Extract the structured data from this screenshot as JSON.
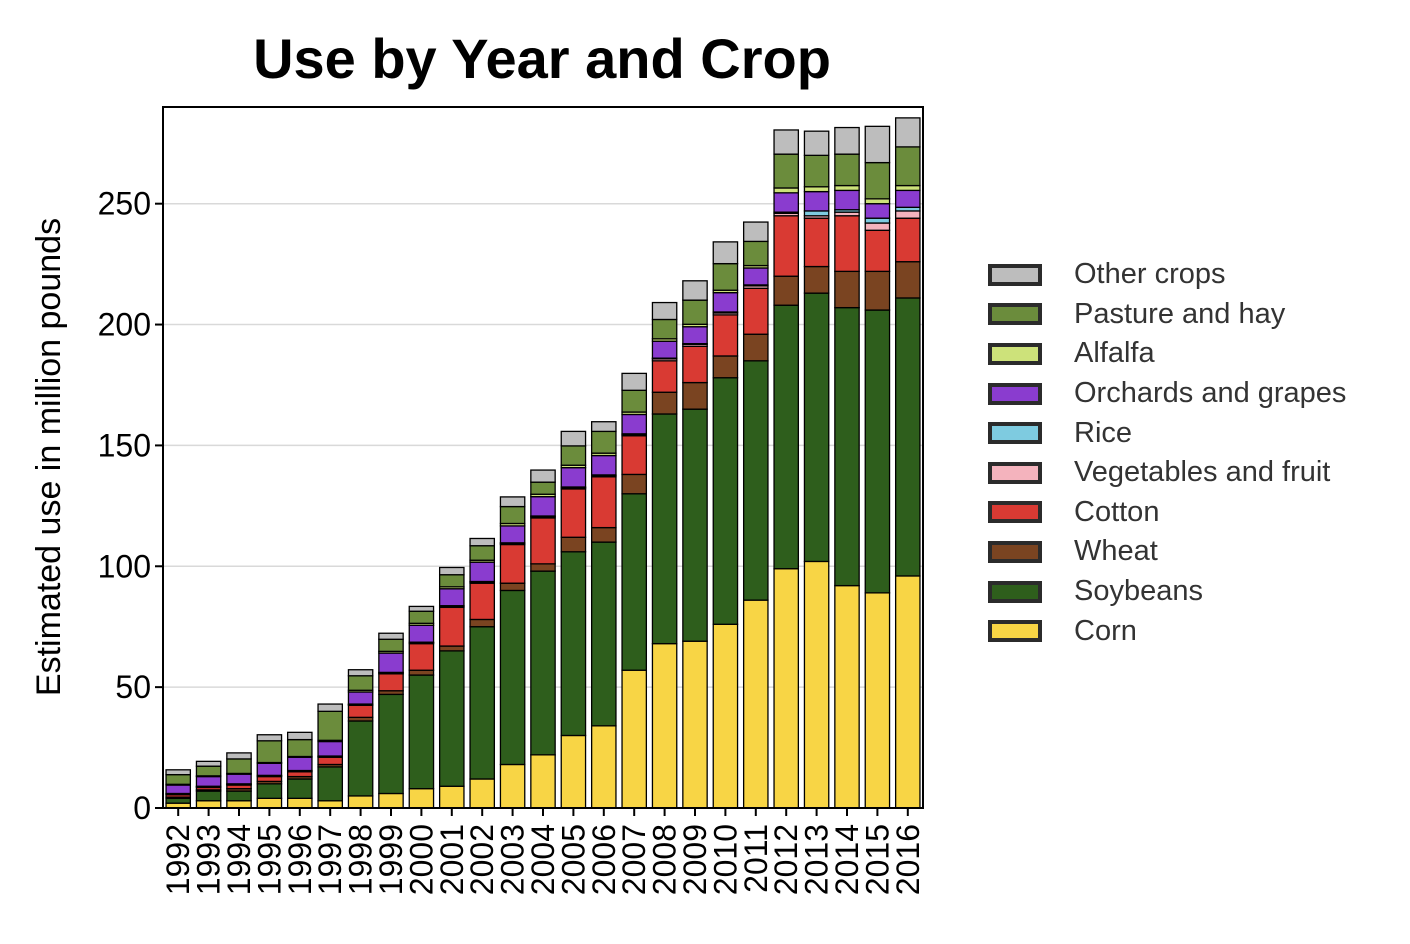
{
  "chart_data": {
    "type": "bar",
    "stacked": true,
    "title": "Use by Year and Crop",
    "xlabel": "",
    "ylabel": "Estimated use in million pounds",
    "ylim": [
      0,
      290
    ],
    "yticks": [
      0,
      50,
      100,
      150,
      200,
      250
    ],
    "grid": "horizontal",
    "legend_position": "right",
    "categories": [
      "1992",
      "1993",
      "1994",
      "1995",
      "1996",
      "1997",
      "1998",
      "1999",
      "2000",
      "2001",
      "2002",
      "2003",
      "2004",
      "2005",
      "2006",
      "2007",
      "2008",
      "2009",
      "2010",
      "2011",
      "2012",
      "2013",
      "2014",
      "2015",
      "2016"
    ],
    "series": [
      {
        "name": "Corn",
        "color": "#f8d545",
        "values": [
          2,
          3,
          3,
          4,
          4,
          3,
          5,
          6,
          8,
          9,
          12,
          18,
          22,
          30,
          34,
          57,
          68,
          69,
          76,
          86,
          99,
          102,
          92,
          89,
          96
        ]
      },
      {
        "name": "Soybeans",
        "color": "#2e5e1c",
        "values": [
          2,
          4,
          4,
          6,
          8,
          14,
          31,
          41,
          47,
          56,
          63,
          72,
          76,
          76,
          76,
          73,
          95,
          96,
          102,
          99,
          109,
          111,
          115,
          117,
          115
        ]
      },
      {
        "name": "Wheat",
        "color": "#7a4421",
        "values": [
          0.5,
          0.5,
          1,
          1,
          1,
          1,
          1.5,
          1.5,
          2,
          2,
          3,
          3,
          3,
          6,
          6,
          8,
          9,
          11,
          9,
          11,
          12,
          11,
          15,
          16,
          15
        ]
      },
      {
        "name": "Cotton",
        "color": "#d93a33",
        "values": [
          1,
          1,
          1.5,
          2,
          2,
          3,
          5,
          7,
          11,
          16,
          15,
          16,
          19,
          20,
          21,
          16,
          13,
          15,
          17,
          19,
          25,
          20,
          23,
          17,
          18
        ]
      },
      {
        "name": "Vegetables and fruit",
        "color": "#f4b3bd",
        "values": [
          0.3,
          0.3,
          0.3,
          0.3,
          0.3,
          0.3,
          0.3,
          0.4,
          0.4,
          0.5,
          0.5,
          0.5,
          0.5,
          0.5,
          0.5,
          0.5,
          0.8,
          0.8,
          0.8,
          1,
          1,
          1,
          1.5,
          3,
          3
        ]
      },
      {
        "name": "Rice",
        "color": "#7ecbe0",
        "values": [
          0.2,
          0.2,
          0.2,
          0.2,
          0.2,
          0.2,
          0.2,
          0.2,
          0.2,
          0.2,
          0.2,
          0.2,
          0.3,
          0.3,
          0.3,
          0.3,
          0.3,
          0.3,
          0.4,
          0.4,
          0.5,
          2,
          1,
          2,
          1.5
        ]
      },
      {
        "name": "Orchards and grapes",
        "color": "#8a3ccf",
        "values": [
          3.5,
          4,
          4,
          5,
          5.5,
          6,
          5,
          8,
          7,
          7,
          8,
          7,
          8,
          8,
          8,
          8,
          7,
          7,
          8,
          7,
          8,
          8,
          8,
          6,
          7
        ]
      },
      {
        "name": "Alfalfa",
        "color": "#cde27a",
        "values": [
          0.3,
          0.3,
          0.3,
          0.3,
          0.3,
          0.5,
          0.7,
          0.7,
          0.8,
          0.8,
          0.8,
          1,
          1,
          1,
          1,
          1,
          1,
          1,
          1,
          1,
          2,
          2,
          2,
          2,
          2
        ]
      },
      {
        "name": "Pasture and hay",
        "color": "#6b8c3c",
        "values": [
          4,
          4,
          6,
          9,
          7,
          12,
          6,
          5,
          5,
          5,
          6,
          7,
          5,
          8,
          9,
          9,
          8,
          10,
          11,
          10,
          14,
          13,
          13,
          15,
          16
        ]
      },
      {
        "name": "Other crops",
        "color": "#bdbdbd",
        "values": [
          2,
          2,
          2.5,
          2.5,
          3,
          3,
          2.5,
          2.5,
          2,
          3,
          3,
          4,
          5,
          6,
          4,
          7,
          7,
          8,
          9,
          8,
          10,
          10,
          11,
          15,
          12
        ]
      }
    ]
  }
}
